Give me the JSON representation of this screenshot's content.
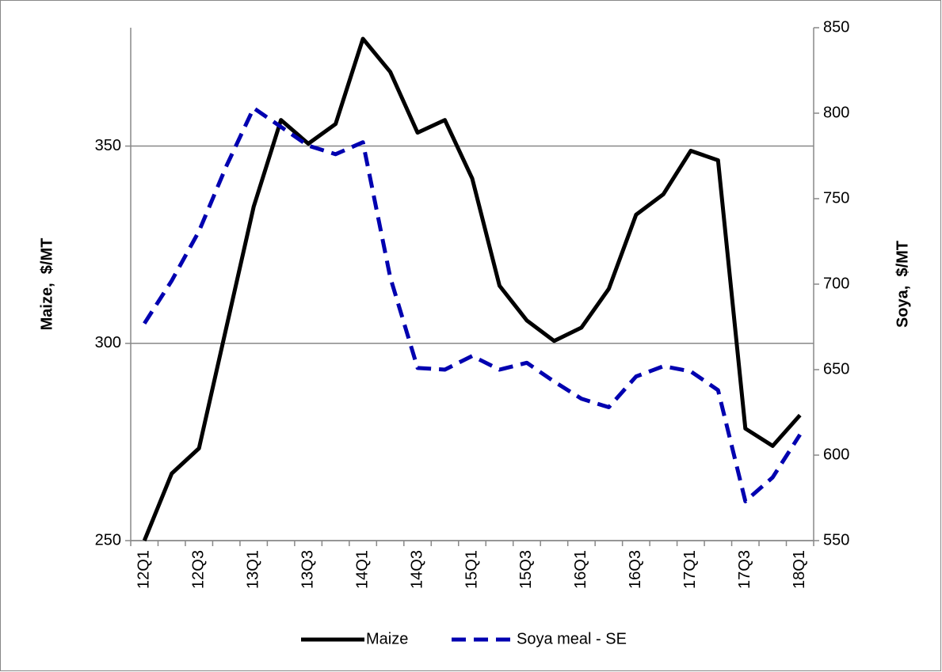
{
  "chart_data": {
    "type": "line",
    "categories": [
      "12Q1",
      null,
      "12Q3",
      null,
      "13Q1",
      null,
      "13Q3",
      null,
      "14Q1",
      null,
      "14Q3",
      null,
      "15Q1",
      null,
      "15Q3",
      null,
      "16Q1",
      null,
      "16Q3",
      null,
      "17Q1",
      null,
      "17Q3",
      null,
      "18Q1"
    ],
    "ylabel": "Maize,  $/MT",
    "y2label": "Soya,  $/MT",
    "ylim": [
      250,
      380
    ],
    "yticks": [
      250,
      300,
      350
    ],
    "y2lim": [
      550,
      850
    ],
    "y2ticks": [
      550,
      600,
      650,
      700,
      750,
      800,
      850
    ],
    "grid": true,
    "legend": "bottom",
    "series": [
      {
        "name": "Maize",
        "color": "#000000",
        "dashed": false,
        "values": [
          250,
          267,
          273.4,
          304,
          334.6,
          356.6,
          350.6,
          355.6,
          377.2,
          368.8,
          353.4,
          356.6,
          341.8,
          314.6,
          305.8,
          300.6,
          304,
          313.8,
          332.6,
          337.8,
          348.8,
          346.4,
          278.4,
          274,
          281.8
        ]
      },
      {
        "name": "Soya meal - SE",
        "color": "#0000b0",
        "dashed": true,
        "axis": "y2",
        "values": [
          677,
          702,
          731,
          769,
          803,
          792,
          781,
          776,
          783,
          704,
          651,
          650,
          658,
          650,
          654,
          643,
          633,
          628,
          646,
          652,
          649,
          638,
          573,
          587,
          612
        ]
      }
    ]
  }
}
